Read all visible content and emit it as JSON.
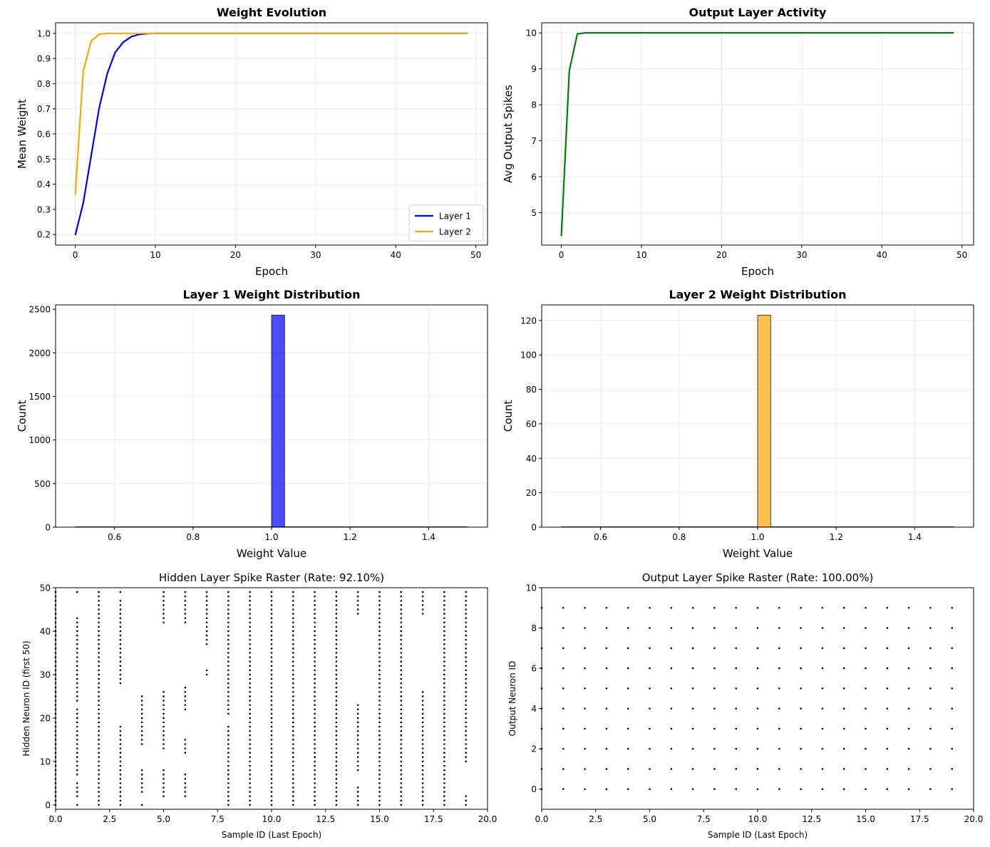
{
  "chart_data": [
    {
      "type": "line",
      "title": "Weight Evolution",
      "xlabel": "Epoch",
      "ylabel": "Mean Weight",
      "xlim": [
        -2.45,
        51.45
      ],
      "ylim": [
        0.158,
        1.042
      ],
      "xticks": [
        0,
        10,
        20,
        30,
        40,
        50
      ],
      "yticks": [
        0.2,
        0.3,
        0.4,
        0.5,
        0.6,
        0.7,
        0.8,
        0.9,
        1.0
      ],
      "ytick_decimals": 1,
      "grid": true,
      "legend": "lower-right",
      "x_start": 0,
      "x_end": 49,
      "series": [
        {
          "name": "Layer 1",
          "color": "#0000ff",
          "values": [
            0.197,
            0.325,
            0.515,
            0.705,
            0.84,
            0.925,
            0.965,
            0.987,
            0.996,
            0.999,
            1.0
          ]
        },
        {
          "name": "Layer 2",
          "color": "#ffa500",
          "values": [
            0.357,
            0.85,
            0.97,
            0.996,
            1.0
          ]
        }
      ]
    },
    {
      "type": "line",
      "title": "Output Layer Activity",
      "xlabel": "Epoch",
      "ylabel": "Avg Output Spikes",
      "xlim": [
        -2.45,
        51.45
      ],
      "ylim": [
        4.1,
        10.28
      ],
      "xticks": [
        0,
        10,
        20,
        30,
        40,
        50
      ],
      "yticks": [
        5,
        6,
        7,
        8,
        9,
        10
      ],
      "ytick_decimals": 0,
      "grid": true,
      "x_start": 0,
      "x_end": 49,
      "series": [
        {
          "name": "",
          "color": "#008000",
          "values": [
            4.35,
            8.95,
            9.97,
            10.0
          ]
        }
      ]
    },
    {
      "type": "bar",
      "title": "Layer 1 Weight Distribution",
      "xlabel": "Weight Value",
      "ylabel": "Count",
      "xlim": [
        0.45,
        1.55
      ],
      "ylim": [
        0,
        2550
      ],
      "xticks": [
        0.6,
        0.8,
        1.0,
        1.2,
        1.4
      ],
      "yticks": [
        0,
        500,
        1000,
        1500,
        2000,
        2500
      ],
      "xtick_decimals": 1,
      "ytick_decimals": 0,
      "grid": true,
      "color": "#0000ff",
      "bars": [
        {
          "x0": 1.0,
          "x1": 1.0333,
          "value": 2433
        }
      ]
    },
    {
      "type": "bar",
      "title": "Layer 2 Weight Distribution",
      "xlabel": "Weight Value",
      "ylabel": "Count",
      "xlim": [
        0.45,
        1.55
      ],
      "ylim": [
        0,
        129
      ],
      "xticks": [
        0.6,
        0.8,
        1.0,
        1.2,
        1.4
      ],
      "yticks": [
        0,
        20,
        40,
        60,
        80,
        100,
        120
      ],
      "xtick_decimals": 1,
      "ytick_decimals": 0,
      "grid": true,
      "color": "#ffa500",
      "bars": [
        {
          "x0": 1.0,
          "x1": 1.0333,
          "value": 123
        }
      ]
    },
    {
      "type": "scatter",
      "title": "Hidden Layer Spike Raster (Rate: 92.10%)",
      "xlabel": "Sample ID (Last Epoch)",
      "ylabel": "Hidden Neuron ID (first 50)",
      "xlim": [
        0,
        20
      ],
      "ylim": [
        -1,
        50
      ],
      "xticks": [
        0.0,
        2.5,
        5.0,
        7.5,
        10.0,
        12.5,
        15.0,
        17.5,
        20.0
      ],
      "yticks": [
        0,
        10,
        20,
        30,
        40,
        50
      ],
      "xtick_decimals": 1,
      "ytick_decimals": 0,
      "grid": false,
      "neuron_count": 50,
      "samples": 20,
      "missing": [
        [],
        [
          1,
          6,
          23,
          44,
          45,
          46,
          47,
          48
        ],
        [],
        [
          19,
          20,
          21,
          22,
          23,
          24,
          25,
          26,
          27,
          48
        ],
        [
          1,
          2,
          9,
          10,
          11,
          12,
          13,
          26,
          27,
          28,
          29,
          30,
          31,
          32,
          33,
          34,
          35,
          36,
          37,
          38,
          39,
          40,
          41,
          42,
          43,
          44,
          45,
          46,
          47,
          48,
          49
        ],
        [
          0,
          1,
          9,
          10,
          11,
          12,
          27,
          28,
          29,
          30,
          31,
          32,
          33,
          34,
          35,
          36,
          37,
          38,
          39,
          40,
          41
        ],
        [
          0,
          1,
          8,
          9,
          10,
          11,
          16,
          17,
          18,
          19,
          20,
          21,
          28,
          29,
          30,
          31,
          32,
          33,
          34,
          35,
          36,
          37,
          38,
          39,
          40,
          41
        ],
        [
          0,
          1,
          2,
          3,
          4,
          5,
          6,
          7,
          8,
          9,
          10,
          11,
          12,
          13,
          14,
          15,
          16,
          17,
          18,
          19,
          20,
          21,
          22,
          23,
          24,
          25,
          26,
          27,
          28,
          29,
          32,
          33,
          34,
          35,
          36
        ],
        [
          19,
          20
        ],
        [],
        [],
        [],
        [],
        [],
        [
          5,
          6,
          7,
          24,
          25,
          26,
          27,
          28,
          29,
          30,
          31,
          32,
          33,
          34,
          35,
          36,
          37,
          38,
          39,
          40,
          41,
          42,
          43
        ],
        [],
        [],
        [
          27,
          28,
          29,
          30,
          31,
          32,
          33,
          34,
          35,
          36,
          37,
          38,
          39,
          40,
          41,
          42,
          43
        ],
        [],
        [
          3,
          4,
          5,
          6,
          7,
          8,
          9
        ]
      ]
    },
    {
      "type": "scatter",
      "title": "Output Layer Spike Raster (Rate: 100.00%)",
      "xlabel": "Sample ID (Last Epoch)",
      "ylabel": "Output Neuron ID",
      "xlim": [
        0,
        20
      ],
      "ylim": [
        -1,
        10
      ],
      "xticks": [
        0.0,
        2.5,
        5.0,
        7.5,
        10.0,
        12.5,
        15.0,
        17.5,
        20.0
      ],
      "yticks": [
        0,
        2,
        4,
        6,
        8,
        10
      ],
      "xtick_decimals": 1,
      "ytick_decimals": 0,
      "grid": false,
      "neuron_count": 10,
      "samples": 20,
      "missing": []
    }
  ]
}
